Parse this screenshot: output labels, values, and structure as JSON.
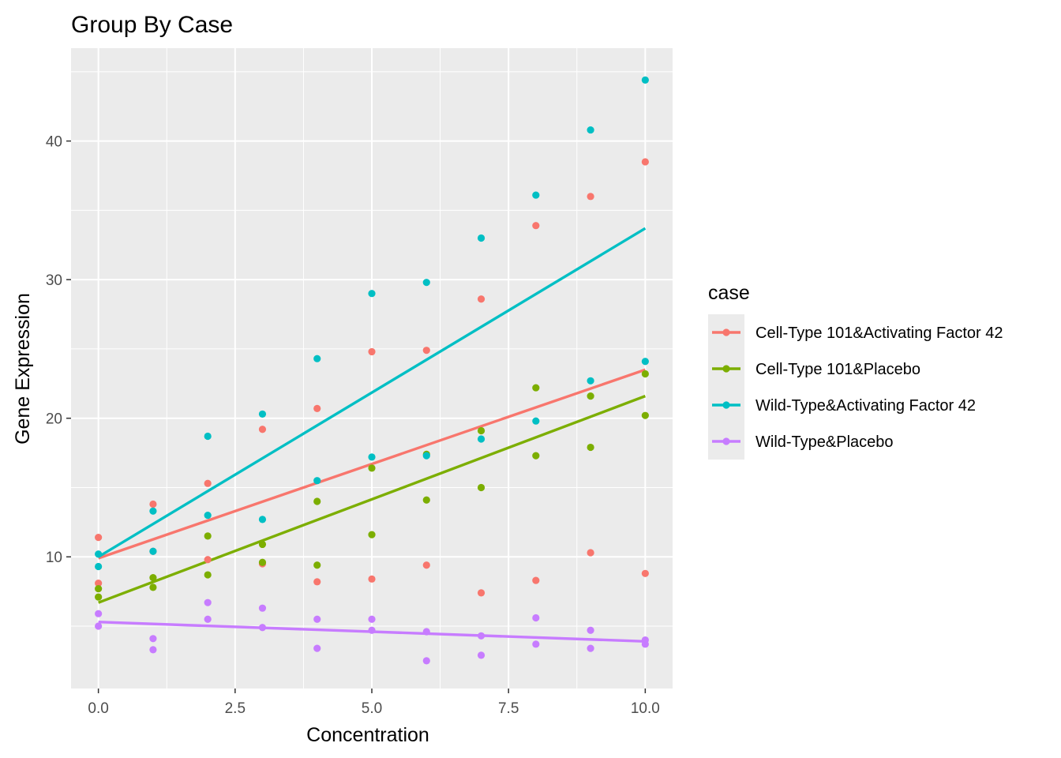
{
  "chart_data": {
    "type": "scatter",
    "title": "Group By Case",
    "xlabel": "Concentration",
    "ylabel": "Gene Expression",
    "xlim": [
      -0.5,
      10.5
    ],
    "ylim": [
      0.5,
      46.7
    ],
    "x_ticks": [
      0,
      2.5,
      5,
      7.5,
      10
    ],
    "x_tick_labels": [
      "0.0",
      "2.5",
      "5.0",
      "7.5",
      "10.0"
    ],
    "y_ticks": [
      10,
      20,
      30,
      40
    ],
    "y_tick_labels": [
      "10",
      "20",
      "30",
      "40"
    ],
    "grid": true,
    "legend": {
      "title": "case",
      "position": "right"
    },
    "series": [
      {
        "name": "Cell-Type 101&Activating Factor 42",
        "color": "#F8766D",
        "points": [
          [
            0,
            11.4
          ],
          [
            0,
            8.1
          ],
          [
            1,
            13.8
          ],
          [
            1,
            10.4
          ],
          [
            2,
            15.3
          ],
          [
            2,
            9.8
          ],
          [
            3,
            19.2
          ],
          [
            3,
            9.5
          ],
          [
            4,
            20.7
          ],
          [
            4,
            8.2
          ],
          [
            5,
            24.8
          ],
          [
            5,
            8.4
          ],
          [
            6,
            24.9
          ],
          [
            6,
            9.4
          ],
          [
            7,
            28.6
          ],
          [
            7,
            7.4
          ],
          [
            8,
            33.9
          ],
          [
            8,
            8.3
          ],
          [
            9,
            36.0
          ],
          [
            9,
            10.3
          ],
          [
            10,
            38.5
          ],
          [
            10,
            8.8
          ]
        ],
        "fit": [
          [
            0,
            9.9
          ],
          [
            10,
            23.5
          ]
        ]
      },
      {
        "name": "Cell-Type 101&Placebo",
        "color": "#7CAE00",
        "points": [
          [
            0,
            7.7
          ],
          [
            0,
            7.1
          ],
          [
            1,
            8.5
          ],
          [
            1,
            7.8
          ],
          [
            2,
            11.5
          ],
          [
            2,
            8.7
          ],
          [
            3,
            10.9
          ],
          [
            3,
            9.6
          ],
          [
            4,
            14.0
          ],
          [
            4,
            9.4
          ],
          [
            5,
            16.4
          ],
          [
            5,
            11.6
          ],
          [
            6,
            17.4
          ],
          [
            6,
            14.1
          ],
          [
            7,
            19.1
          ],
          [
            7,
            15.0
          ],
          [
            8,
            22.2
          ],
          [
            8,
            17.3
          ],
          [
            9,
            21.6
          ],
          [
            9,
            17.9
          ],
          [
            10,
            23.2
          ],
          [
            10,
            20.2
          ]
        ],
        "fit": [
          [
            0,
            6.7
          ],
          [
            10,
            21.6
          ]
        ]
      },
      {
        "name": "Wild-Type&Activating Factor 42",
        "color": "#00BFC4",
        "points": [
          [
            0,
            10.2
          ],
          [
            0,
            9.3
          ],
          [
            1,
            13.3
          ],
          [
            1,
            10.4
          ],
          [
            2,
            18.7
          ],
          [
            2,
            13.0
          ],
          [
            3,
            20.3
          ],
          [
            3,
            12.7
          ],
          [
            4,
            24.3
          ],
          [
            4,
            15.5
          ],
          [
            5,
            29.0
          ],
          [
            5,
            17.2
          ],
          [
            6,
            29.8
          ],
          [
            6,
            17.3
          ],
          [
            7,
            33.0
          ],
          [
            7,
            18.5
          ],
          [
            8,
            36.1
          ],
          [
            8,
            19.8
          ],
          [
            9,
            40.8
          ],
          [
            9,
            22.7
          ],
          [
            10,
            44.4
          ],
          [
            10,
            24.1
          ]
        ],
        "fit": [
          [
            0,
            10.0
          ],
          [
            10,
            33.7
          ]
        ]
      },
      {
        "name": "Wild-Type&Placebo",
        "color": "#C77CFF",
        "points": [
          [
            0,
            5.9
          ],
          [
            0,
            5.0
          ],
          [
            1,
            4.1
          ],
          [
            1,
            3.3
          ],
          [
            2,
            6.7
          ],
          [
            2,
            5.5
          ],
          [
            3,
            6.3
          ],
          [
            3,
            4.9
          ],
          [
            4,
            5.5
          ],
          [
            4,
            3.4
          ],
          [
            5,
            5.5
          ],
          [
            5,
            4.7
          ],
          [
            6,
            4.6
          ],
          [
            6,
            2.5
          ],
          [
            7,
            4.3
          ],
          [
            7,
            2.9
          ],
          [
            8,
            5.6
          ],
          [
            8,
            3.7
          ],
          [
            9,
            4.7
          ],
          [
            9,
            3.4
          ],
          [
            10,
            4.0
          ],
          [
            10,
            3.7
          ]
        ],
        "fit": [
          [
            0,
            5.3
          ],
          [
            10,
            3.9
          ]
        ]
      }
    ]
  }
}
